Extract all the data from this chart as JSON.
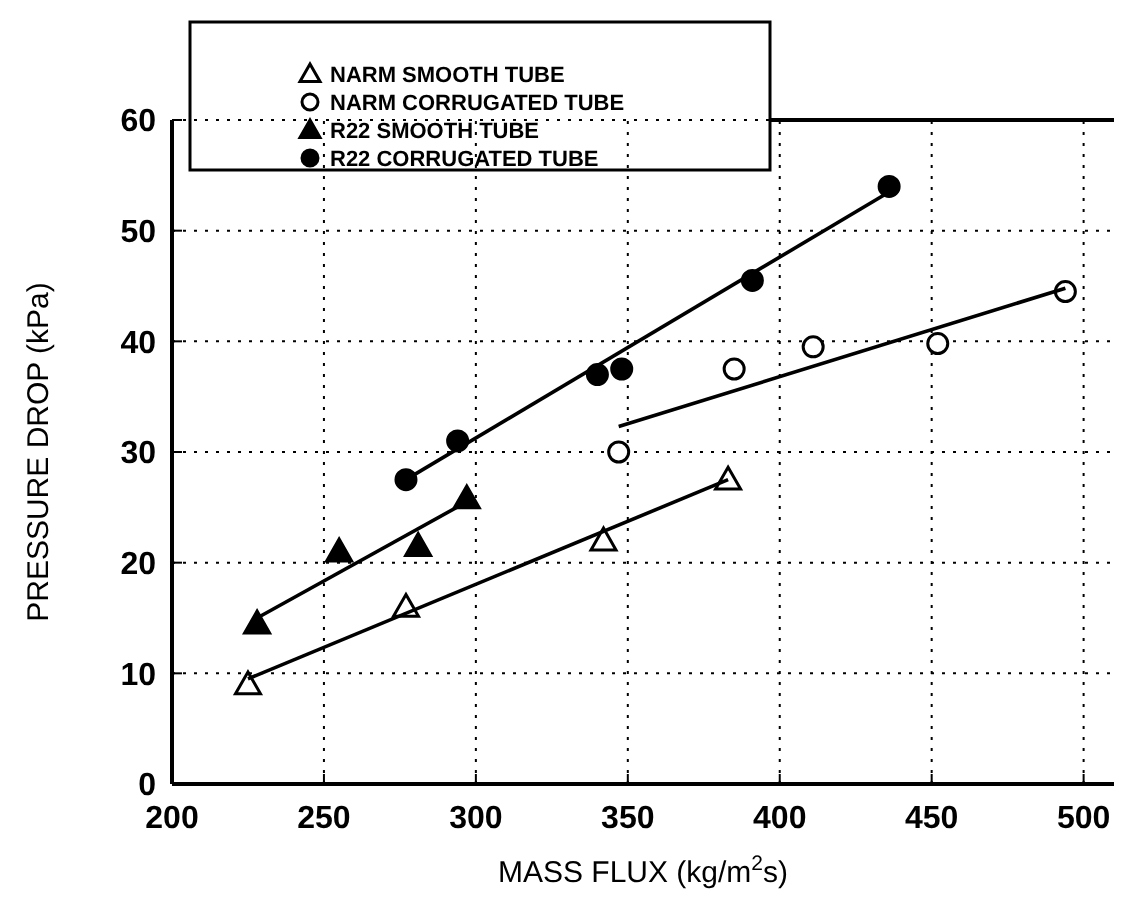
{
  "chart_data": {
    "type": "scatter",
    "xlabel": "MASS FLUX (kg/m$^{2}$s)",
    "ylabel": "PRESSURE DROP (kPa)",
    "xlim": [
      200,
      510
    ],
    "ylim": [
      0,
      60
    ],
    "xticks": [
      200,
      250,
      300,
      350,
      400,
      450,
      500
    ],
    "yticks": [
      0,
      10,
      20,
      30,
      40,
      50,
      60
    ],
    "grid": true,
    "legend": "top left",
    "series": [
      {
        "name": "NARM SMOOTH TUBE",
        "marker": "triangle",
        "color": "#ffffff",
        "x": [
          225,
          277,
          342,
          383
        ],
        "values": [
          9,
          16,
          22,
          27.5
        ]
      },
      {
        "name": "NARM CORRUGATED TUBE",
        "marker": "circle",
        "color": "#ffffff",
        "x": [
          347,
          385,
          411,
          452,
          494
        ],
        "values": [
          30,
          37.5,
          39.5,
          39.8,
          44.5
        ]
      },
      {
        "name": "R22 SMOOTH TUBE",
        "marker": "triangle",
        "color": "#000000",
        "x": [
          228,
          255,
          281,
          297
        ],
        "values": [
          14.5,
          21,
          21.5,
          25.8
        ]
      },
      {
        "name": "R22 CORRUGATED TUBE",
        "marker": "circle",
        "color": "#000000",
        "x": [
          277,
          294,
          340,
          348,
          391,
          436
        ],
        "values": [
          27.5,
          31,
          37,
          37.5,
          45.5,
          54
        ]
      },
      {
        "type": "line",
        "marker": "none",
        "color": "#000000",
        "x": [
          225,
          383
        ],
        "values": [
          9.5,
          27.5
        ]
      },
      {
        "type": "line",
        "marker": "none",
        "color": "#000000",
        "x": [
          347,
          494
        ],
        "values": [
          32.3,
          44.8
        ]
      },
      {
        "type": "line",
        "marker": "none",
        "color": "#000000",
        "x": [
          228,
          297
        ],
        "values": [
          15,
          25.5
        ]
      },
      {
        "type": "line",
        "marker": "none",
        "color": "#000000",
        "x": [
          277,
          436
        ],
        "values": [
          27.5,
          53.5
        ]
      }
    ]
  }
}
